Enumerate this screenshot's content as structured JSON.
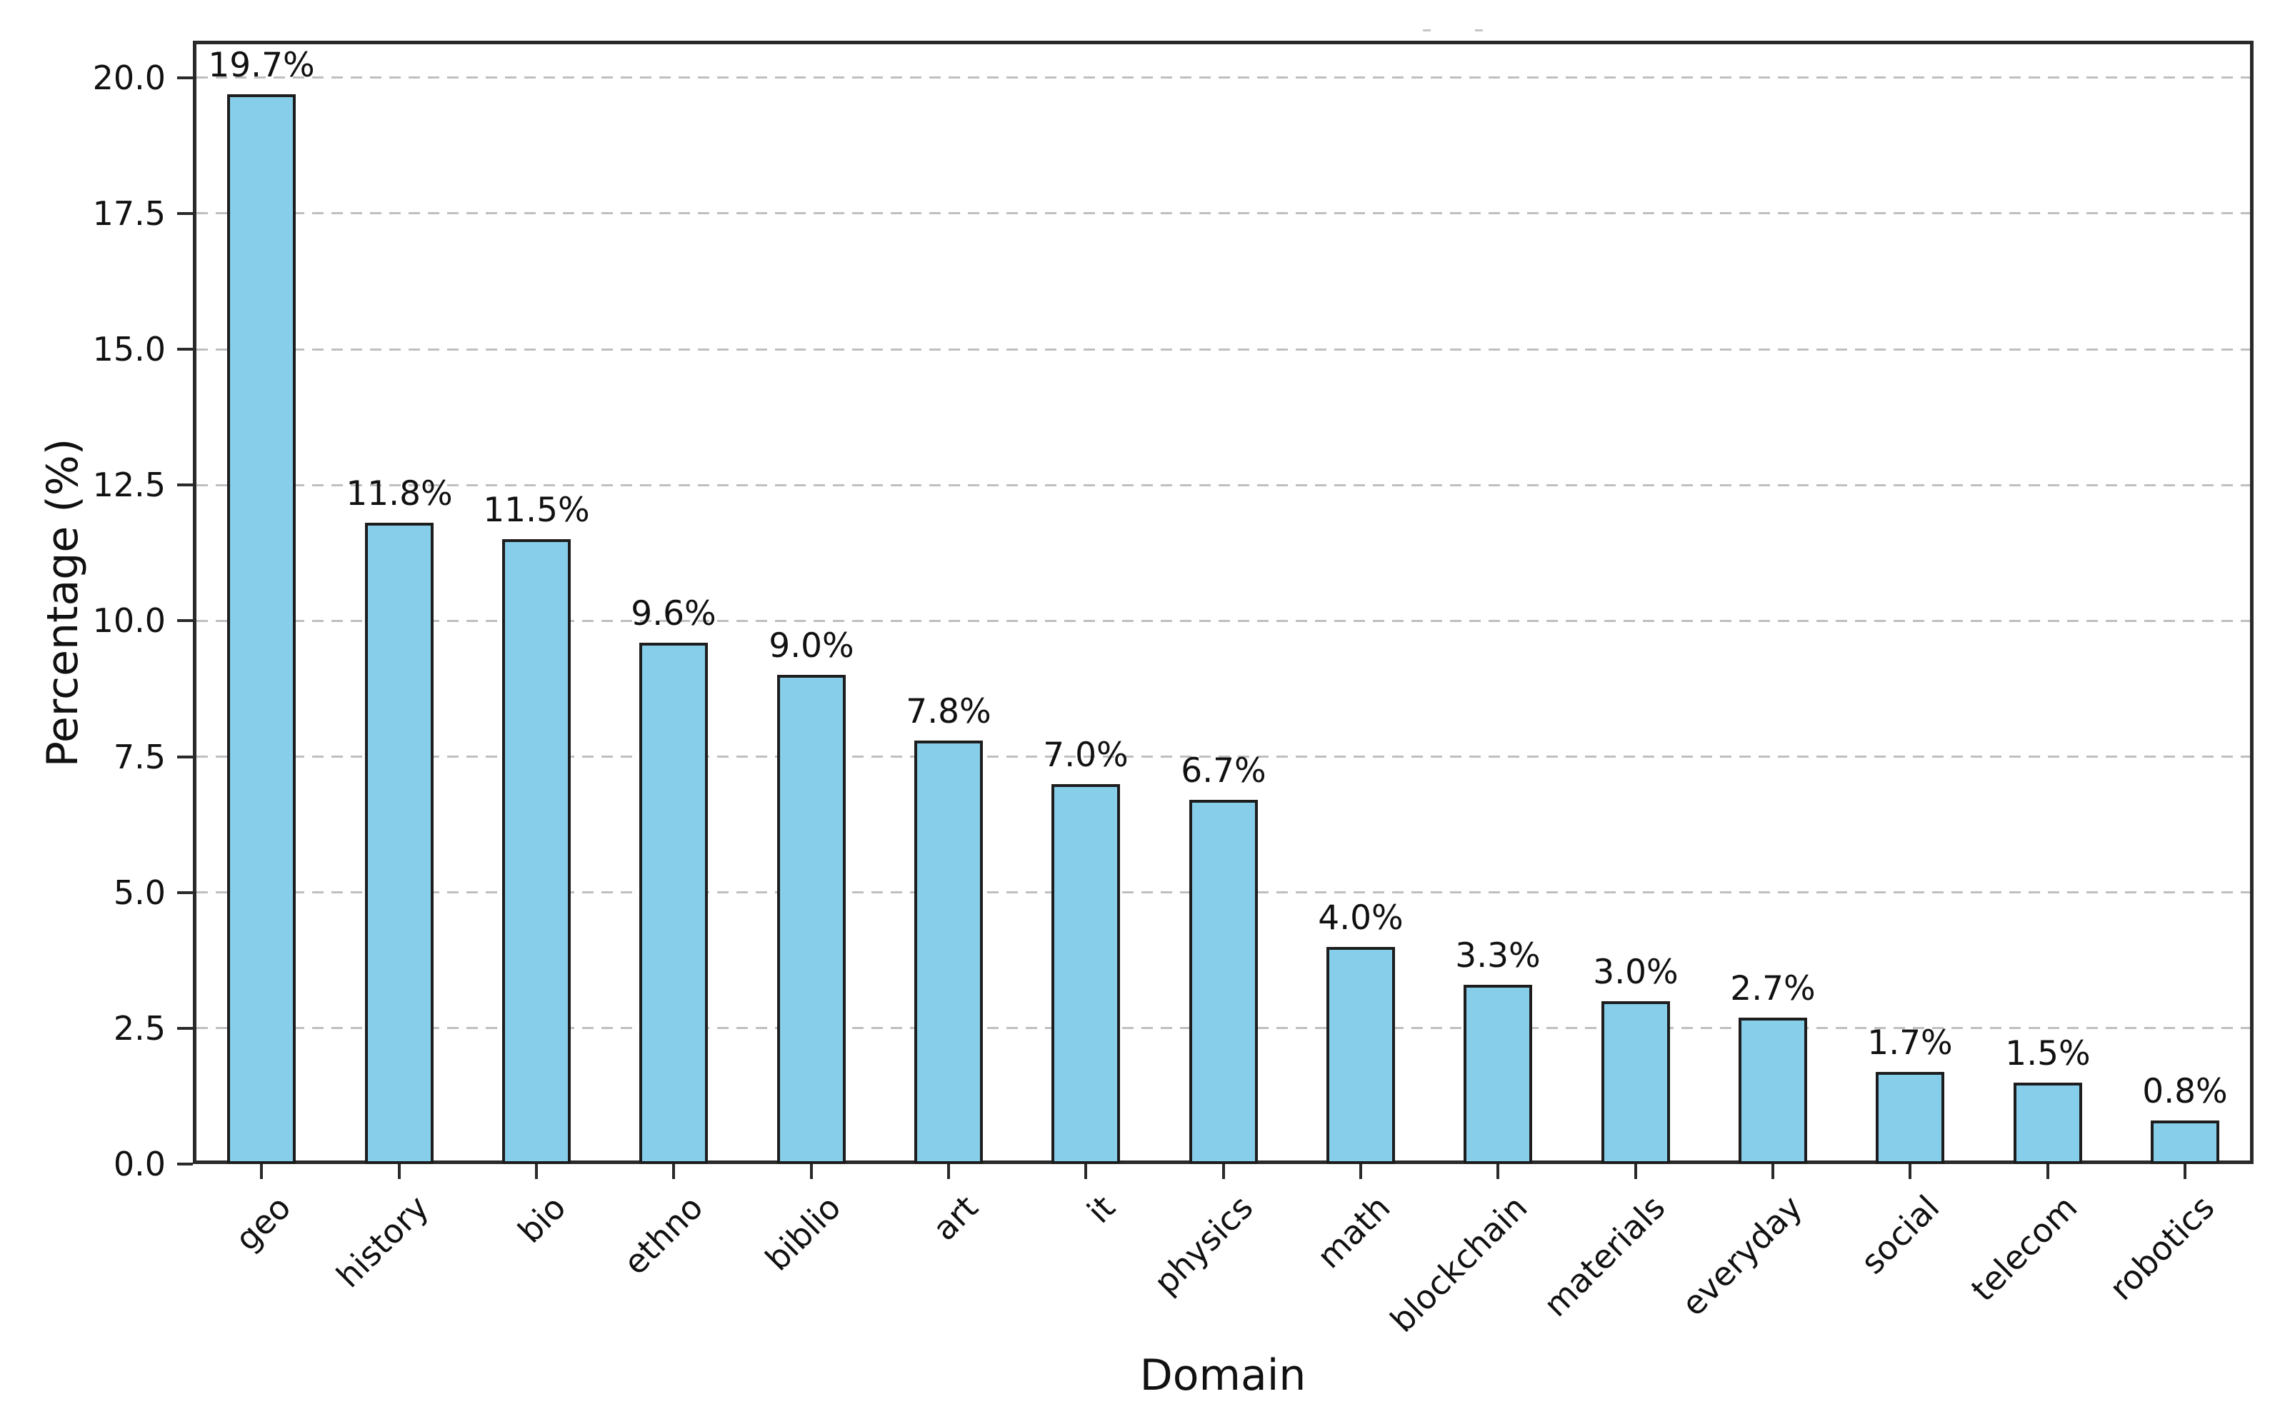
{
  "chart_data": {
    "type": "bar",
    "title": "",
    "xlabel": "Domain",
    "ylabel": "Percentage (%)",
    "categories": [
      "geo",
      "history",
      "bio",
      "ethno",
      "biblio",
      "art",
      "it",
      "physics",
      "math",
      "blockchain",
      "materials",
      "everyday",
      "social",
      "telecom",
      "robotics"
    ],
    "values": [
      19.7,
      11.8,
      11.5,
      9.6,
      9.0,
      7.8,
      7.0,
      6.7,
      4.0,
      3.3,
      3.0,
      2.7,
      1.7,
      1.5,
      0.8
    ],
    "value_labels": [
      "19.7%",
      "11.8%",
      "11.5%",
      "9.6%",
      "9.0%",
      "7.8%",
      "7.0%",
      "6.7%",
      "4.0%",
      "3.3%",
      "3.0%",
      "2.7%",
      "1.7%",
      "1.5%",
      "0.8%"
    ],
    "yticks": [
      0.0,
      2.5,
      5.0,
      7.5,
      10.0,
      12.5,
      15.0,
      17.5,
      20.0
    ],
    "ytick_labels": [
      "0.0",
      "2.5",
      "5.0",
      "7.5",
      "10.0",
      "12.5",
      "15.0",
      "17.5",
      "20.0"
    ],
    "ylim": [
      0,
      20.68
    ],
    "grid": "horizontal-dashed",
    "legend": "none",
    "bar_width_fraction": 0.5,
    "colors": {
      "bar_fill": "#87CEEB",
      "bar_edge": "#1d1d1d",
      "grid": "#bfbfbf",
      "spine": "#2a2a2a",
      "text": "#111111",
      "background": "#ffffff"
    }
  }
}
